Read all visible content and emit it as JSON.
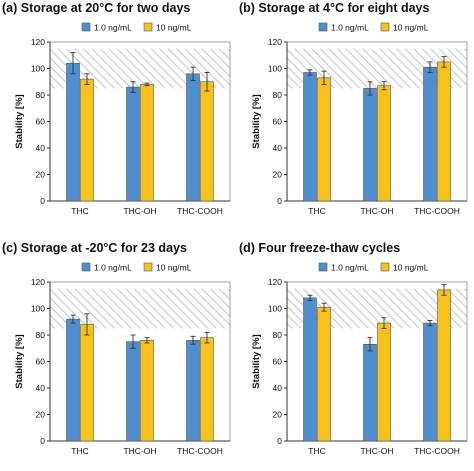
{
  "chart_data": [
    {
      "type": "bar",
      "title": "(a) Storage at 20°C for two days",
      "ylabel": "Stability [%]",
      "ylim": [
        0,
        120
      ],
      "yticks": [
        0,
        20,
        40,
        60,
        80,
        100,
        120
      ],
      "acceptance_range": [
        85,
        115
      ],
      "categories": [
        "THC",
        "THC-OH",
        "THC-COOH"
      ],
      "series": [
        {
          "name": "1.0 ng/mL",
          "color": "#4F8FCF",
          "values": [
            104,
            86,
            96
          ],
          "errors": [
            8,
            4,
            5
          ]
        },
        {
          "name": "10 ng/mL",
          "color": "#F7C11C",
          "values": [
            92,
            88,
            90
          ],
          "errors": [
            4,
            1,
            7
          ]
        }
      ],
      "legend": "top",
      "grid": false
    },
    {
      "type": "bar",
      "title": "(b) Storage at 4°C for eight days",
      "ylabel": "Stability [%]",
      "ylim": [
        0,
        120
      ],
      "yticks": [
        0,
        20,
        40,
        60,
        80,
        100,
        120
      ],
      "acceptance_range": [
        85,
        115
      ],
      "categories": [
        "THC",
        "THC-OH",
        "THC-COOH"
      ],
      "series": [
        {
          "name": "1.0 ng/mL",
          "color": "#4F8FCF",
          "values": [
            97,
            85,
            101
          ],
          "errors": [
            2,
            5,
            4
          ]
        },
        {
          "name": "10 ng/mL",
          "color": "#F7C11C",
          "values": [
            93,
            87,
            105
          ],
          "errors": [
            5,
            3,
            4
          ]
        }
      ],
      "legend": "top",
      "grid": false
    },
    {
      "type": "bar",
      "title": "(c) Storage at -20°C for 23 days",
      "ylabel": "Stability [%]",
      "ylim": [
        0,
        120
      ],
      "yticks": [
        0,
        20,
        40,
        60,
        80,
        100,
        120
      ],
      "acceptance_range": [
        85,
        115
      ],
      "categories": [
        "THC",
        "THC-OH",
        "THC-COOH"
      ],
      "series": [
        {
          "name": "1.0 ng/mL",
          "color": "#4F8FCF",
          "values": [
            92,
            75,
            76
          ],
          "errors": [
            3,
            5,
            3
          ]
        },
        {
          "name": "10 ng/mL",
          "color": "#F7C11C",
          "values": [
            88,
            76,
            78
          ],
          "errors": [
            8,
            2,
            4
          ]
        }
      ],
      "legend": "top",
      "grid": false
    },
    {
      "type": "bar",
      "title": "(d) Four freeze-thaw cycles",
      "ylabel": "Stability [%]",
      "ylim": [
        0,
        120
      ],
      "yticks": [
        0,
        20,
        40,
        60,
        80,
        100,
        120
      ],
      "acceptance_range": [
        85,
        115
      ],
      "categories": [
        "THC",
        "THC-OH",
        "THC-COOH"
      ],
      "series": [
        {
          "name": "1.0 ng/mL",
          "color": "#4F8FCF",
          "values": [
            108,
            73,
            89
          ],
          "errors": [
            2,
            5,
            2
          ]
        },
        {
          "name": "10 ng/mL",
          "color": "#F7C11C",
          "values": [
            101,
            89,
            114
          ],
          "errors": [
            3,
            4,
            4
          ]
        }
      ],
      "legend": "top",
      "grid": false
    }
  ]
}
